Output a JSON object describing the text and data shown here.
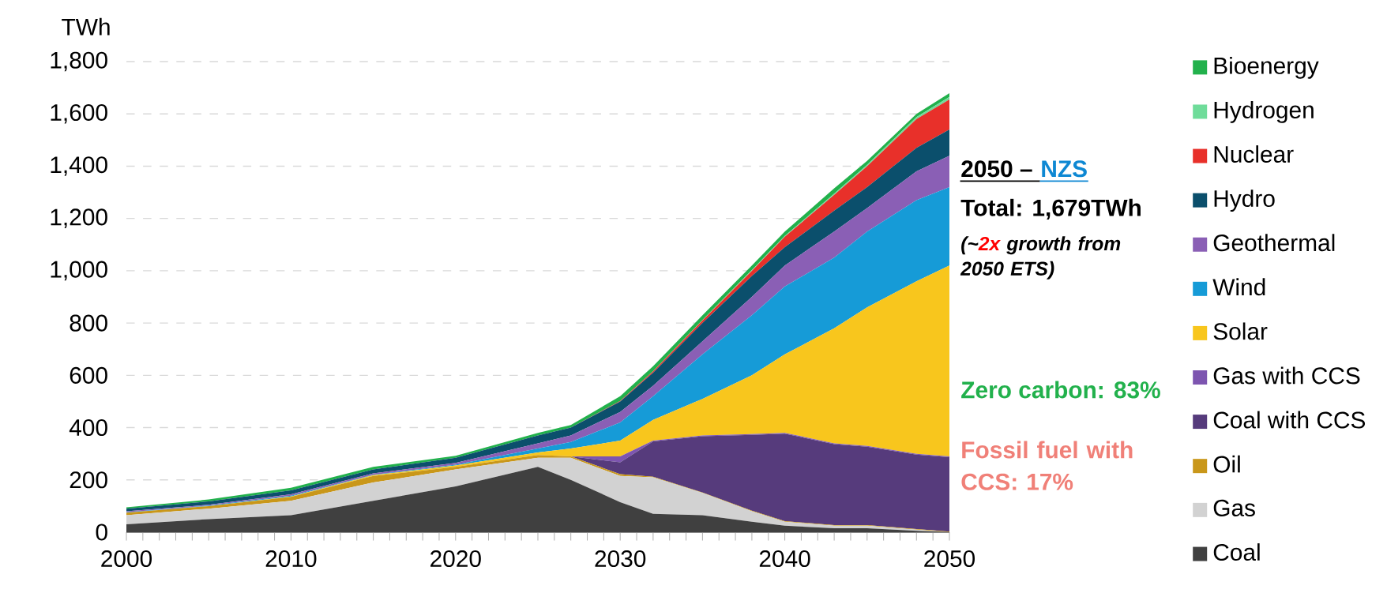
{
  "chart_data": {
    "type": "area",
    "stacked": true,
    "ylabel": "TWh",
    "x": [
      2000,
      2005,
      2010,
      2015,
      2020,
      2025,
      2027,
      2030,
      2032,
      2035,
      2038,
      2040,
      2043,
      2045,
      2048,
      2050
    ],
    "xlim": [
      2000,
      2050
    ],
    "xticks": [
      2000,
      2010,
      2020,
      2030,
      2040,
      2050
    ],
    "ylim": [
      0,
      1800
    ],
    "yticks": [
      0,
      200,
      400,
      600,
      800,
      {
        "value": 1000,
        "label": "1,000"
      },
      {
        "value": 1200,
        "label": "1,200"
      },
      {
        "value": 1400,
        "label": "1,400"
      },
      {
        "value": 1600,
        "label": "1,600"
      },
      {
        "value": 1800,
        "label": "1,800"
      }
    ],
    "grid": "y",
    "legend": "right",
    "series": [
      {
        "name": "Coal",
        "color": "#404040",
        "values": [
          30,
          50,
          65,
          120,
          175,
          250,
          200,
          115,
          70,
          65,
          40,
          25,
          15,
          15,
          5,
          0
        ]
      },
      {
        "name": "Gas",
        "color": "#d2d2d2",
        "values": [
          35,
          40,
          55,
          70,
          65,
          35,
          85,
          100,
          140,
          85,
          40,
          15,
          10,
          10,
          5,
          0
        ]
      },
      {
        "name": "Oil",
        "color": "#c9971a",
        "values": [
          10,
          10,
          15,
          25,
          10,
          10,
          5,
          7,
          2,
          2,
          2,
          2,
          2,
          2,
          2,
          2
        ]
      },
      {
        "name": "Coal with CCS",
        "color": "#563b7c",
        "values": [
          0,
          0,
          0,
          0,
          0,
          0,
          0,
          45,
          135,
          215,
          290,
          335,
          310,
          300,
          285,
          285
        ]
      },
      {
        "name": "Gas with CCS",
        "color": "#7d55b0",
        "values": [
          0,
          0,
          0,
          0,
          0,
          0,
          0,
          23,
          3,
          3,
          3,
          3,
          3,
          3,
          3,
          3
        ]
      },
      {
        "name": "Solar",
        "color": "#f8c61d",
        "values": [
          0,
          0,
          2,
          3,
          5,
          10,
          30,
          60,
          80,
          140,
          225,
          300,
          440,
          530,
          660,
          730
        ]
      },
      {
        "name": "Wind",
        "color": "#169bd7",
        "values": [
          1,
          2,
          3,
          2,
          3,
          15,
          25,
          70,
          90,
          170,
          230,
          260,
          270,
          290,
          310,
          300
        ]
      },
      {
        "name": "Geothermal",
        "color": "#8a5fb5",
        "values": [
          4,
          3,
          5,
          5,
          7,
          20,
          25,
          40,
          40,
          50,
          70,
          80,
          100,
          90,
          110,
          120
        ]
      },
      {
        "name": "Hydro",
        "color": "#0b4f6c",
        "values": [
          10,
          13,
          15,
          15,
          20,
          30,
          30,
          40,
          50,
          70,
          80,
          70,
          80,
          80,
          90,
          100
        ]
      },
      {
        "name": "Nuclear",
        "color": "#e8302a",
        "values": [
          0,
          0,
          0,
          0,
          0,
          0,
          0,
          2,
          5,
          10,
          20,
          40,
          60,
          80,
          110,
          115
        ]
      },
      {
        "name": "Hydrogen",
        "color": "#6fdc9a",
        "values": [
          0,
          0,
          0,
          0,
          0,
          0,
          0,
          0,
          1,
          2,
          3,
          3,
          5,
          5,
          8,
          10
        ]
      },
      {
        "name": "Bioenergy",
        "color": "#22b14c",
        "values": [
          5,
          7,
          10,
          10,
          7,
          10,
          10,
          18,
          19,
          18,
          17,
          17,
          20,
          15,
          12,
          14
        ]
      }
    ],
    "annotations": [
      "2050 – ",
      "NZS",
      "Total: 1,679TWh",
      "(~",
      "2x",
      "growth from 2050 ETS)",
      "Zero carbon: 83%",
      "Fossil fuel with CCS: 17%"
    ]
  }
}
